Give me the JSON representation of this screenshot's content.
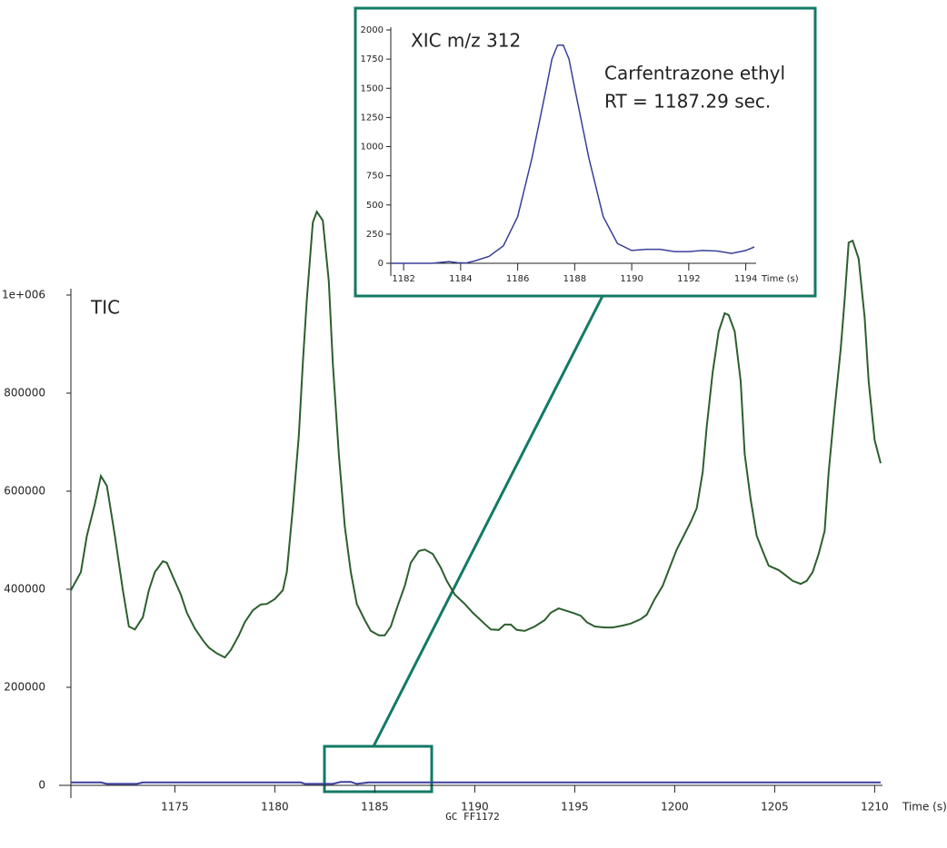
{
  "chart_data": [
    {
      "type": "line",
      "title": "TIC",
      "x_label": "Time (s)",
      "xlim": [
        1169.8,
        1210.3
      ],
      "xticks": [
        1175,
        1180,
        1185,
        1190,
        1195,
        1200,
        1205,
        1210
      ],
      "ylim": [
        0,
        1200000
      ],
      "yticks": [
        0,
        200000,
        400000,
        600000,
        800000,
        {
          "value": 1000000,
          "label": "1e+006"
        }
      ],
      "series": [
        {
          "name": "TIC",
          "color": "#2c5f2e",
          "x": [
            1169.8,
            1170.3,
            1170.6,
            1171.0,
            1171.3,
            1171.6,
            1172.0,
            1172.4,
            1172.7,
            1173.0,
            1173.4,
            1173.7,
            1174.0,
            1174.4,
            1174.6,
            1174.9,
            1175.3,
            1175.6,
            1176.0,
            1176.4,
            1176.7,
            1177.1,
            1177.5,
            1177.8,
            1178.2,
            1178.5,
            1178.9,
            1179.3,
            1179.6,
            1180.0,
            1180.4,
            1180.6,
            1180.9,
            1181.2,
            1181.4,
            1181.6,
            1181.9,
            1182.1,
            1182.4,
            1182.7,
            1182.9,
            1183.2,
            1183.5,
            1183.8,
            1184.1,
            1184.5,
            1184.8,
            1185.2,
            1185.5,
            1185.8,
            1186.1,
            1186.5,
            1186.8,
            1187.2,
            1187.5,
            1187.9,
            1188.3,
            1188.6,
            1189.0,
            1189.5,
            1189.9,
            1190.4,
            1190.8,
            1191.2,
            1191.5,
            1191.8,
            1192.1,
            1192.5,
            1193.0,
            1193.5,
            1193.8,
            1194.2,
            1194.5,
            1194.9,
            1195.3,
            1195.6,
            1196.0,
            1196.5,
            1196.9,
            1197.4,
            1197.8,
            1198.3,
            1198.6,
            1199.0,
            1199.4,
            1199.7,
            1200.1,
            1200.5,
            1200.8,
            1201.1,
            1201.4,
            1201.6,
            1201.9,
            1202.2,
            1202.5,
            1202.7,
            1203.0,
            1203.3,
            1203.5,
            1203.8,
            1204.1,
            1204.4,
            1204.7,
            1205.2,
            1205.5,
            1205.9,
            1206.3,
            1206.6,
            1206.9,
            1207.2,
            1207.5,
            1207.7,
            1208.0,
            1208.3,
            1208.5,
            1208.7,
            1208.9,
            1209.2,
            1209.5,
            1209.7,
            1210.0,
            1210.3
          ],
          "values": [
            398000,
            435000,
            509000,
            574000,
            631000,
            611000,
            509000,
            398000,
            324000,
            318000,
            343000,
            398000,
            435000,
            457000,
            454000,
            426000,
            389000,
            352000,
            320000,
            296000,
            281000,
            269000,
            261000,
            276000,
            306000,
            333000,
            357000,
            369000,
            370000,
            380000,
            398000,
            435000,
            565000,
            713000,
            861000,
            991000,
            1148000,
            1170000,
            1152000,
            1028000,
            861000,
            676000,
            528000,
            435000,
            370000,
            337000,
            315000,
            306000,
            306000,
            324000,
            361000,
            407000,
            454000,
            478000,
            481000,
            472000,
            444000,
            417000,
            389000,
            370000,
            352000,
            333000,
            318000,
            317000,
            328000,
            328000,
            317000,
            315000,
            324000,
            337000,
            352000,
            361000,
            357000,
            352000,
            346000,
            333000,
            324000,
            322000,
            322000,
            326000,
            330000,
            339000,
            348000,
            380000,
            407000,
            439000,
            481000,
            513000,
            537000,
            565000,
            639000,
            731000,
            843000,
            926000,
            963000,
            959000,
            926000,
            824000,
            676000,
            583000,
            509000,
            478000,
            448000,
            439000,
            430000,
            417000,
            411000,
            417000,
            435000,
            472000,
            519000,
            639000,
            769000,
            889000,
            991000,
            1107000,
            1111000,
            1074000,
            954000,
            824000,
            704000,
            657000
          ]
        },
        {
          "name": "XIC m/z 312",
          "color": "#3a3f9a",
          "x": [
            1169.8,
            1171.3,
            1171.6,
            1173.1,
            1173.4,
            1181.3,
            1181.5,
            1182.9,
            1183.3,
            1183.8,
            1184.1,
            1184.7,
            1210.3
          ],
          "values": [
            6000,
            6000,
            3000,
            3000,
            6000,
            6000,
            3000,
            3000,
            7000,
            7000,
            3000,
            6000,
            6000
          ]
        }
      ]
    },
    {
      "type": "line",
      "title": "XIC m/z 312",
      "x_label": "Time (s)",
      "annotation": [
        "Carfentrazone ethyl",
        "RT = 1187.29 sec."
      ],
      "xlim": [
        1181.55,
        1194.3
      ],
      "xticks": [
        1182,
        1184,
        1186,
        1188,
        1190,
        1192,
        1194
      ],
      "ylim": [
        0,
        2000
      ],
      "yticks": [
        0,
        250,
        500,
        750,
        1000,
        1250,
        1500,
        1750,
        2000
      ],
      "series": [
        {
          "name": "XIC m/z 312",
          "color": "#3a3f9a",
          "x": [
            1181.55,
            1183.0,
            1183.3,
            1183.6,
            1183.9,
            1184.2,
            1184.5,
            1185.0,
            1185.5,
            1186.0,
            1186.5,
            1187.0,
            1187.2,
            1187.4,
            1187.6,
            1187.8,
            1188.0,
            1188.5,
            1189.0,
            1189.5,
            1190.0,
            1190.5,
            1191.0,
            1191.5,
            1192.0,
            1192.5,
            1193.0,
            1193.5,
            1194.0,
            1194.3
          ],
          "values": [
            0,
            0,
            8,
            15,
            5,
            3,
            20,
            60,
            150,
            400,
            900,
            1500,
            1750,
            1870,
            1870,
            1750,
            1500,
            900,
            400,
            170,
            110,
            120,
            120,
            100,
            100,
            110,
            105,
            85,
            110,
            140
          ]
        }
      ]
    }
  ],
  "footer": "GC FF1172"
}
